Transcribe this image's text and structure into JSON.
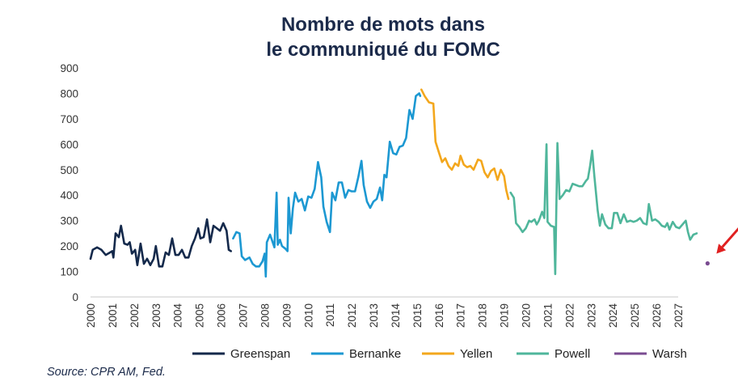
{
  "chart_data": {
    "type": "line",
    "title": [
      "Nombre de mots dans",
      "le communiqué du FOMC"
    ],
    "xlabel": "",
    "ylabel": "",
    "xlim": [
      2000,
      2027
    ],
    "ylim": [
      0,
      900
    ],
    "y_ticks": [
      0,
      100,
      200,
      300,
      400,
      500,
      600,
      700,
      800,
      900
    ],
    "x_ticks": [
      "2000",
      "2001",
      "2002",
      "2003",
      "2004",
      "2005",
      "2006",
      "2007",
      "2008",
      "2009",
      "2010",
      "2011",
      "2012",
      "2013",
      "2014",
      "2015",
      "2016",
      "2017",
      "2018",
      "2019",
      "2020",
      "2021",
      "2022",
      "2023",
      "2024",
      "2025",
      "2026",
      "2027"
    ],
    "grid": false,
    "legend_position": "bottom",
    "series": [
      {
        "name": "Greenspan",
        "color": "#14294b",
        "points": [
          [
            2000.0,
            150
          ],
          [
            2000.1,
            185
          ],
          [
            2000.3,
            195
          ],
          [
            2000.5,
            185
          ],
          [
            2000.7,
            165
          ],
          [
            2000.9,
            175
          ],
          [
            2001.0,
            180
          ],
          [
            2001.05,
            155
          ],
          [
            2001.15,
            250
          ],
          [
            2001.3,
            235
          ],
          [
            2001.4,
            280
          ],
          [
            2001.55,
            210
          ],
          [
            2001.7,
            205
          ],
          [
            2001.8,
            215
          ],
          [
            2001.9,
            170
          ],
          [
            2002.05,
            185
          ],
          [
            2002.15,
            125
          ],
          [
            2002.3,
            210
          ],
          [
            2002.45,
            130
          ],
          [
            2002.6,
            150
          ],
          [
            2002.75,
            125
          ],
          [
            2002.9,
            150
          ],
          [
            2003.0,
            200
          ],
          [
            2003.15,
            120
          ],
          [
            2003.3,
            120
          ],
          [
            2003.45,
            175
          ],
          [
            2003.6,
            165
          ],
          [
            2003.75,
            230
          ],
          [
            2003.9,
            165
          ],
          [
            2004.05,
            165
          ],
          [
            2004.2,
            185
          ],
          [
            2004.35,
            155
          ],
          [
            2004.5,
            155
          ],
          [
            2004.65,
            200
          ],
          [
            2004.8,
            230
          ],
          [
            2004.95,
            270
          ],
          [
            2005.05,
            230
          ],
          [
            2005.2,
            235
          ],
          [
            2005.35,
            305
          ],
          [
            2005.5,
            215
          ],
          [
            2005.65,
            280
          ],
          [
            2005.8,
            270
          ],
          [
            2005.95,
            260
          ],
          [
            2006.1,
            290
          ],
          [
            2006.25,
            260
          ],
          [
            2006.35,
            185
          ],
          [
            2006.45,
            180
          ]
        ]
      },
      {
        "name": "Bernanke",
        "color": "#1c98d2",
        "points": [
          [
            2006.55,
            230
          ],
          [
            2006.7,
            255
          ],
          [
            2006.85,
            250
          ],
          [
            2006.95,
            160
          ],
          [
            2007.1,
            145
          ],
          [
            2007.3,
            155
          ],
          [
            2007.45,
            130
          ],
          [
            2007.6,
            120
          ],
          [
            2007.75,
            120
          ],
          [
            2007.9,
            140
          ],
          [
            2008.0,
            170
          ],
          [
            2008.05,
            80
          ],
          [
            2008.1,
            215
          ],
          [
            2008.25,
            245
          ],
          [
            2008.35,
            220
          ],
          [
            2008.45,
            195
          ],
          [
            2008.55,
            410
          ],
          [
            2008.6,
            205
          ],
          [
            2008.7,
            225
          ],
          [
            2008.8,
            200
          ],
          [
            2008.95,
            190
          ],
          [
            2009.05,
            180
          ],
          [
            2009.1,
            390
          ],
          [
            2009.2,
            250
          ],
          [
            2009.3,
            350
          ],
          [
            2009.4,
            410
          ],
          [
            2009.55,
            375
          ],
          [
            2009.7,
            385
          ],
          [
            2009.85,
            340
          ],
          [
            2010.0,
            395
          ],
          [
            2010.15,
            390
          ],
          [
            2010.3,
            425
          ],
          [
            2010.45,
            530
          ],
          [
            2010.6,
            470
          ],
          [
            2010.7,
            355
          ],
          [
            2010.85,
            295
          ],
          [
            2011.0,
            255
          ],
          [
            2011.1,
            410
          ],
          [
            2011.25,
            380
          ],
          [
            2011.4,
            450
          ],
          [
            2011.55,
            450
          ],
          [
            2011.7,
            390
          ],
          [
            2011.85,
            420
          ],
          [
            2012.0,
            415
          ],
          [
            2012.15,
            415
          ],
          [
            2012.3,
            470
          ],
          [
            2012.45,
            535
          ],
          [
            2012.55,
            440
          ],
          [
            2012.7,
            375
          ],
          [
            2012.85,
            350
          ],
          [
            2013.0,
            375
          ],
          [
            2013.15,
            385
          ],
          [
            2013.3,
            430
          ],
          [
            2013.4,
            380
          ],
          [
            2013.5,
            480
          ],
          [
            2013.6,
            470
          ],
          [
            2013.75,
            610
          ],
          [
            2013.9,
            565
          ],
          [
            2014.05,
            560
          ],
          [
            2014.2,
            590
          ],
          [
            2014.35,
            595
          ],
          [
            2014.5,
            625
          ],
          [
            2014.65,
            735
          ],
          [
            2014.8,
            700
          ],
          [
            2014.95,
            790
          ],
          [
            2015.1,
            800
          ],
          [
            2015.15,
            790
          ]
        ]
      },
      {
        "name": "Yellen",
        "color": "#f3a71d",
        "points": [
          [
            2015.2,
            815
          ],
          [
            2015.35,
            790
          ],
          [
            2015.55,
            765
          ],
          [
            2015.75,
            760
          ],
          [
            2015.85,
            610
          ],
          [
            2016.0,
            570
          ],
          [
            2016.15,
            530
          ],
          [
            2016.3,
            545
          ],
          [
            2016.45,
            515
          ],
          [
            2016.6,
            500
          ],
          [
            2016.75,
            525
          ],
          [
            2016.9,
            515
          ],
          [
            2017.0,
            555
          ],
          [
            2017.15,
            520
          ],
          [
            2017.3,
            510
          ],
          [
            2017.45,
            515
          ],
          [
            2017.6,
            500
          ],
          [
            2017.8,
            540
          ],
          [
            2017.95,
            535
          ],
          [
            2018.1,
            490
          ],
          [
            2018.25,
            470
          ],
          [
            2018.4,
            495
          ],
          [
            2018.55,
            505
          ],
          [
            2018.7,
            460
          ],
          [
            2018.85,
            500
          ],
          [
            2019.0,
            475
          ],
          [
            2019.1,
            420
          ],
          [
            2019.2,
            385
          ]
        ]
      },
      {
        "name": "Powell",
        "color": "#4fb69b",
        "points": [
          [
            2019.3,
            410
          ],
          [
            2019.45,
            390
          ],
          [
            2019.55,
            290
          ],
          [
            2019.7,
            275
          ],
          [
            2019.85,
            255
          ],
          [
            2020.0,
            270
          ],
          [
            2020.15,
            300
          ],
          [
            2020.25,
            295
          ],
          [
            2020.4,
            305
          ],
          [
            2020.5,
            285
          ],
          [
            2020.6,
            300
          ],
          [
            2020.75,
            335
          ],
          [
            2020.85,
            310
          ],
          [
            2020.95,
            600
          ],
          [
            2021.0,
            295
          ],
          [
            2021.15,
            280
          ],
          [
            2021.3,
            275
          ],
          [
            2021.35,
            90
          ],
          [
            2021.45,
            605
          ],
          [
            2021.55,
            385
          ],
          [
            2021.7,
            400
          ],
          [
            2021.85,
            420
          ],
          [
            2022.0,
            415
          ],
          [
            2022.15,
            445
          ],
          [
            2022.3,
            440
          ],
          [
            2022.45,
            435
          ],
          [
            2022.6,
            435
          ],
          [
            2022.75,
            455
          ],
          [
            2022.85,
            465
          ],
          [
            2022.95,
            515
          ],
          [
            2023.05,
            575
          ],
          [
            2023.15,
            475
          ],
          [
            2023.3,
            340
          ],
          [
            2023.4,
            280
          ],
          [
            2023.5,
            325
          ],
          [
            2023.65,
            285
          ],
          [
            2023.8,
            270
          ],
          [
            2023.95,
            270
          ],
          [
            2024.05,
            330
          ],
          [
            2024.2,
            330
          ],
          [
            2024.35,
            290
          ],
          [
            2024.5,
            325
          ],
          [
            2024.65,
            295
          ],
          [
            2024.8,
            300
          ],
          [
            2024.95,
            295
          ],
          [
            2025.1,
            300
          ],
          [
            2025.25,
            310
          ],
          [
            2025.4,
            290
          ],
          [
            2025.55,
            285
          ],
          [
            2025.65,
            365
          ],
          [
            2025.8,
            300
          ],
          [
            2025.95,
            305
          ],
          [
            2026.1,
            295
          ],
          [
            2026.25,
            280
          ],
          [
            2026.4,
            275
          ],
          [
            2026.5,
            290
          ],
          [
            2026.6,
            265
          ],
          [
            2026.75,
            295
          ],
          [
            2026.9,
            275
          ],
          [
            2027.05,
            270
          ],
          [
            2027.2,
            285
          ],
          [
            2027.35,
            300
          ],
          [
            2027.45,
            255
          ],
          [
            2027.55,
            225
          ],
          [
            2027.7,
            245
          ],
          [
            2027.85,
            250
          ]
        ]
      },
      {
        "name": "Warsh",
        "color": "#7a4c91",
        "points": [
          [
            2028.35,
            132
          ]
        ]
      }
    ],
    "arrow_color": "#e02020"
  },
  "source": "Source: CPR AM, Fed."
}
